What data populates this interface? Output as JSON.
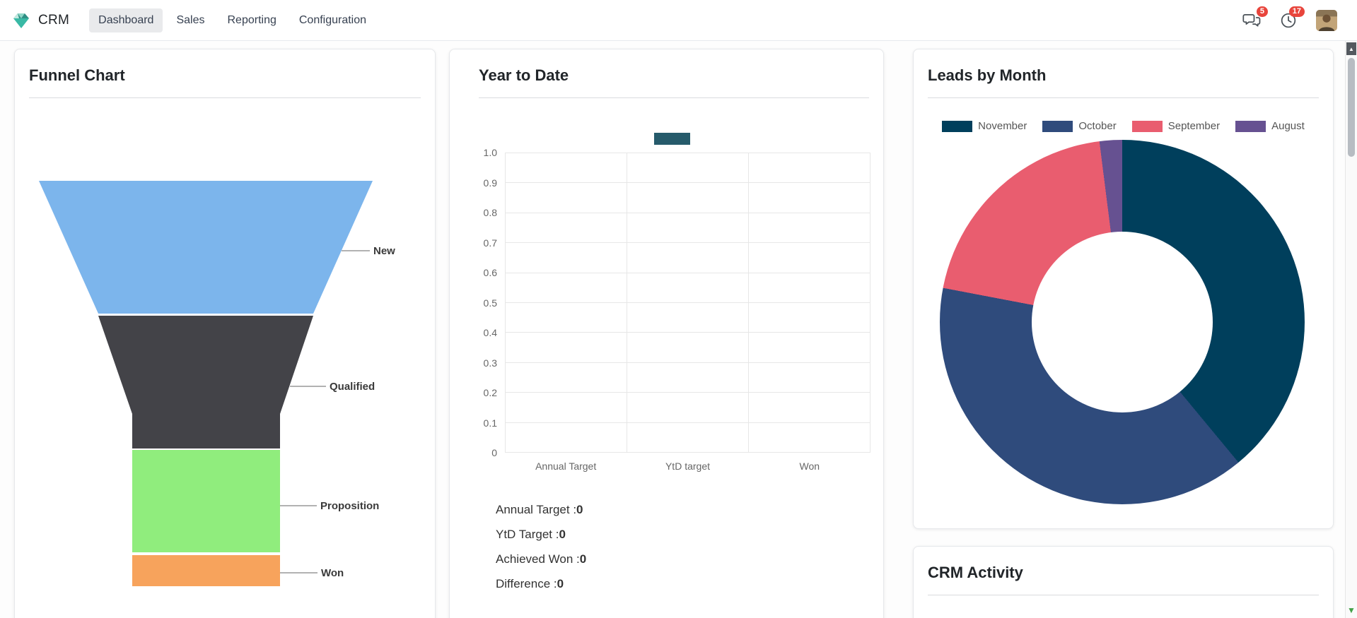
{
  "navbar": {
    "app_name": "CRM",
    "menu_items": [
      {
        "label": "Dashboard",
        "active": true
      },
      {
        "label": "Sales",
        "active": false
      },
      {
        "label": "Reporting",
        "active": false
      },
      {
        "label": "Configuration",
        "active": false
      }
    ],
    "messages_badge": "5",
    "activities_badge": "17",
    "badge_color": "#e8453c"
  },
  "funnel_card": {
    "title": "Funnel Chart",
    "chart_data": {
      "type": "funnel",
      "title": "Funnel Chart",
      "stages": [
        {
          "label": "New",
          "color": "#7cb5ec"
        },
        {
          "label": "Qualified",
          "color": "#434348"
        },
        {
          "label": "Proposition",
          "color": "#90ed7d"
        },
        {
          "label": "Won",
          "color": "#f7a35c"
        }
      ]
    }
  },
  "ytd_card": {
    "title": "Year to Date",
    "chart_data": {
      "type": "bar",
      "title": "Year to Date",
      "categories": [
        "Annual Target",
        "YtD target",
        "Won"
      ],
      "values": [
        0,
        0,
        0
      ],
      "y_ticks": [
        "1.0",
        "0.9",
        "0.8",
        "0.7",
        "0.6",
        "0.5",
        "0.4",
        "0.3",
        "0.2",
        "0.1",
        "0"
      ],
      "ylim": [
        0,
        1
      ],
      "grid": true,
      "legend_position": "top",
      "series_color": "#265b6b"
    },
    "summary": [
      {
        "label": "Annual Target :",
        "value": "0"
      },
      {
        "label": "YtD Target :",
        "value": "0"
      },
      {
        "label": "Achieved Won :",
        "value": "0"
      },
      {
        "label": "Difference :",
        "value": "0"
      }
    ]
  },
  "leads_card": {
    "title": "Leads by Month",
    "chart_data": {
      "type": "pie",
      "style": "donut",
      "title": "Leads by Month",
      "legend_position": "top",
      "series": [
        {
          "name": "November",
          "value": 39,
          "color": "#003f5c"
        },
        {
          "name": "October",
          "value": 39,
          "color": "#2f4b7c"
        },
        {
          "name": "September",
          "value": 20,
          "color": "#e95d6f"
        },
        {
          "name": "August",
          "value": 2,
          "color": "#665191"
        }
      ]
    }
  },
  "activity_card": {
    "title": "CRM Activity"
  }
}
